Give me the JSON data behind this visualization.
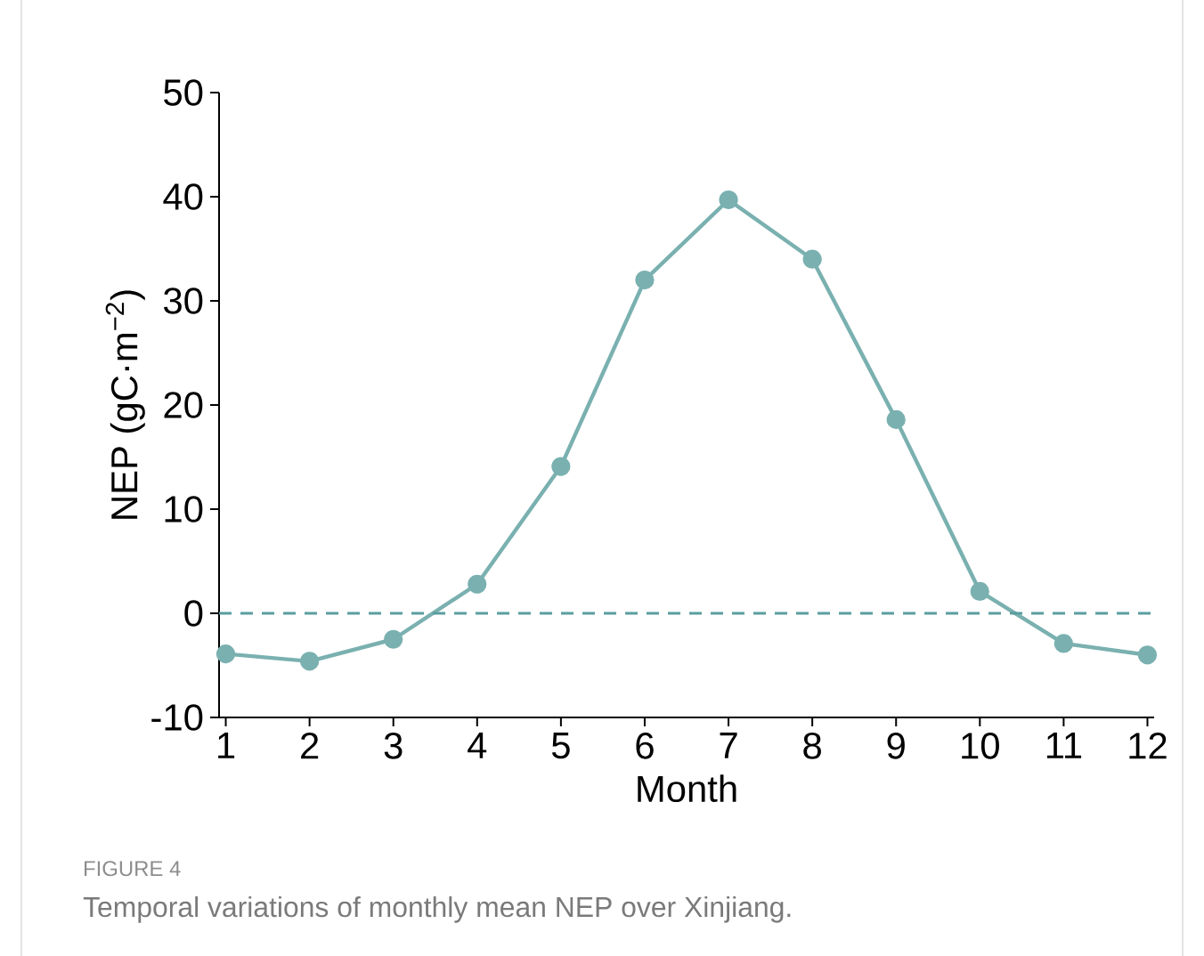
{
  "chart_data": {
    "type": "line",
    "xlabel": "Month",
    "ylabel": "NEP (gC·m$^{−2}$)",
    "x": [
      1,
      2,
      3,
      4,
      5,
      6,
      7,
      8,
      9,
      10,
      11,
      12
    ],
    "series": [
      {
        "color": "#7ab0b0",
        "values": [
          -3.9,
          -4.6,
          -2.5,
          2.8,
          14.1,
          32.0,
          39.7,
          34.0,
          18.6,
          2.1,
          -2.9,
          -4.0
        ]
      }
    ],
    "xlim": [
      0.92,
      12.08
    ],
    "ylim": [
      -10,
      50
    ],
    "xticks": [
      1,
      2,
      3,
      4,
      5,
      6,
      7,
      8,
      9,
      10,
      11,
      12
    ],
    "yticks": [
      -10,
      0,
      10,
      20,
      30,
      40,
      50
    ],
    "ref_lines": [
      {
        "axis": "y",
        "value": 0,
        "color": "#5a9ea0",
        "line_style": "dashed"
      }
    ],
    "marker": "circle",
    "line_style": "solid",
    "grid": false,
    "annotations": [
      "FIGURE 4",
      "Temporal variations of monthly mean NEP over Xinjiang."
    ]
  }
}
